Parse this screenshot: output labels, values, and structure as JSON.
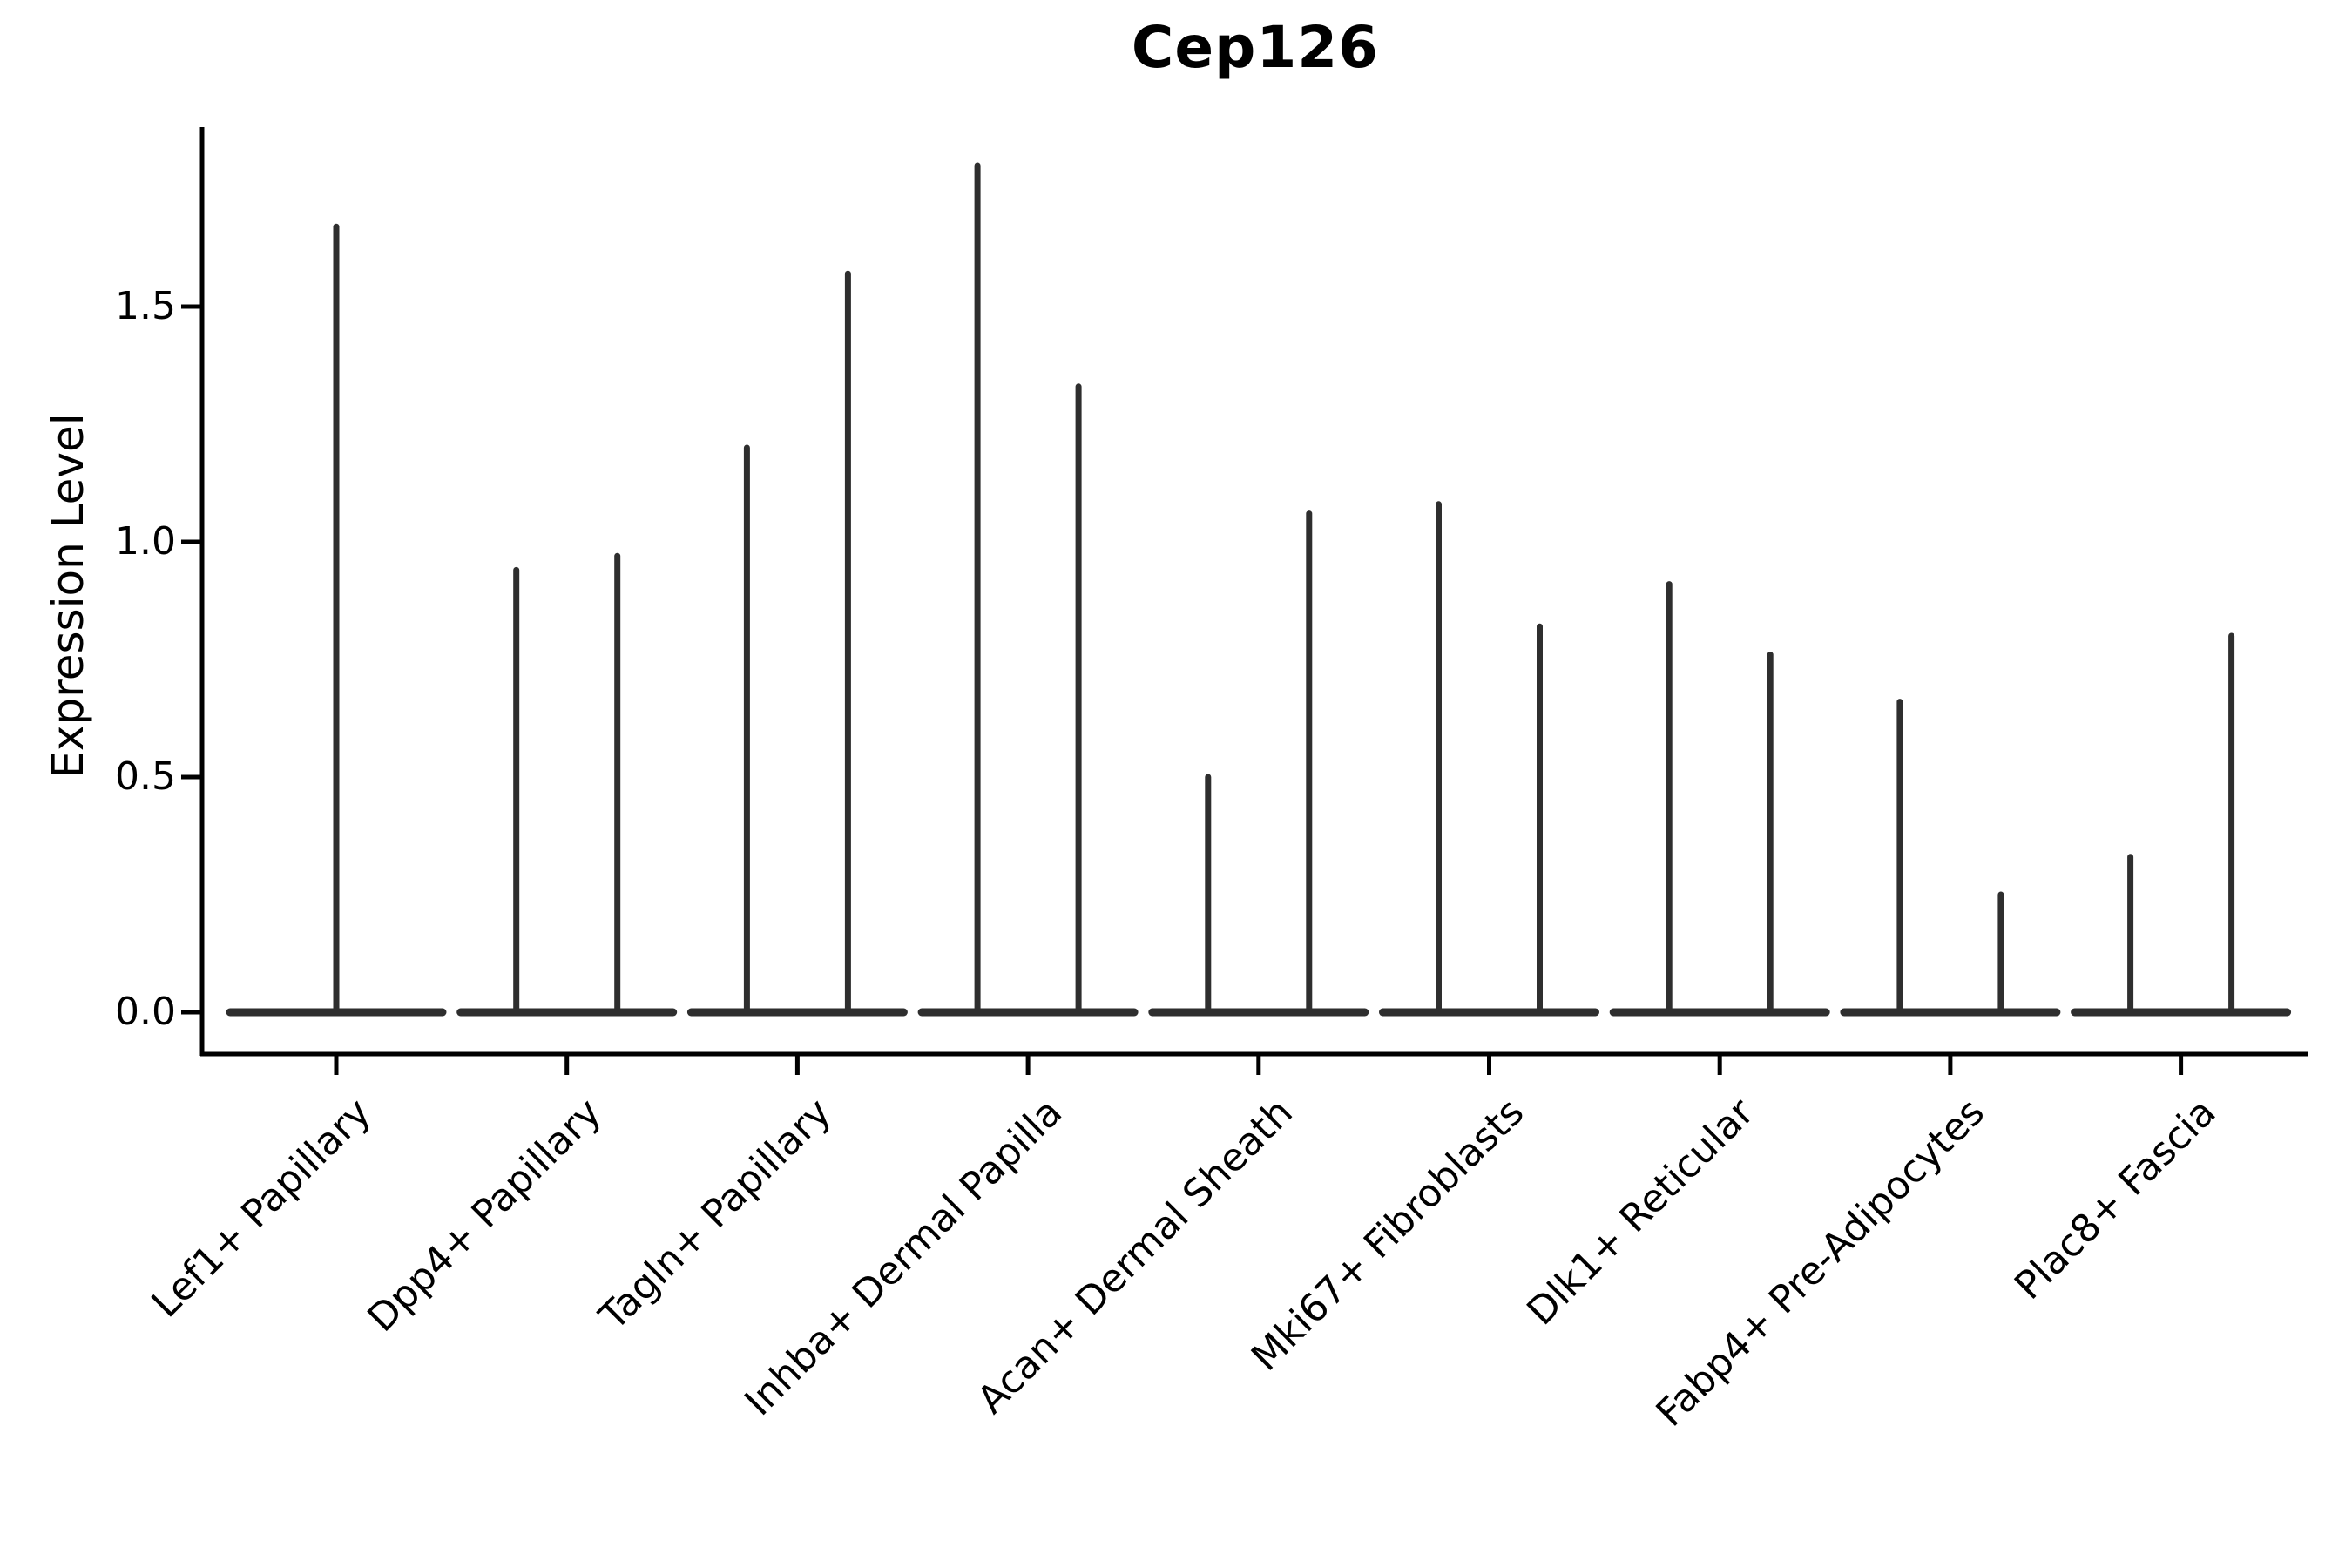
{
  "chart_data": {
    "type": "violin",
    "title": "Cep126",
    "xlabel": "",
    "ylabel": "Expression Level",
    "ylim": [
      -0.09,
      1.88
    ],
    "yticks": [
      0.0,
      0.5,
      1.0,
      1.5
    ],
    "ytick_labels": [
      "0.0",
      "0.5",
      "1.0",
      "1.5"
    ],
    "grid": false,
    "legend": null,
    "categories": [
      "Lef1+ Papillary",
      "Dpp4+ Papillary",
      "Tagln+ Papillary",
      "Inhba+ Dermal Papilla",
      "Acan+ Dermal Sheath",
      "Mki67+ Fibroblasts",
      "Dlk1+ Reticular",
      "Fabp4+ Pre-Adipocytes",
      "Plac8+ Fascia"
    ],
    "violins": [
      {
        "category": "Lef1+ Papillary",
        "spike_values": [
          1.67
        ]
      },
      {
        "category": "Dpp4+ Papillary",
        "spike_values": [
          0.94,
          0.97
        ]
      },
      {
        "category": "Tagln+ Papillary",
        "spike_values": [
          1.2,
          1.57
        ]
      },
      {
        "category": "Inhba+ Dermal Papilla",
        "spike_values": [
          1.8,
          1.33
        ]
      },
      {
        "category": "Acan+ Dermal Sheath",
        "spike_values": [
          0.5,
          1.06
        ]
      },
      {
        "category": "Mki67+ Fibroblasts",
        "spike_values": [
          1.08,
          0.82
        ]
      },
      {
        "category": "Dlk1+ Reticular",
        "spike_values": [
          0.91,
          0.76
        ]
      },
      {
        "category": "Fabp4+ Pre-Adipocytes",
        "spike_values": [
          0.66,
          0.25
        ]
      },
      {
        "category": "Plac8+ Fascia",
        "spike_values": [
          0.33,
          0.8
        ]
      }
    ],
    "baseline_value": 0.0,
    "style": {
      "violin_color": "#2e2e2e",
      "axis_color": "#000000",
      "text_color": "#000000",
      "background": "#ffffff"
    }
  }
}
